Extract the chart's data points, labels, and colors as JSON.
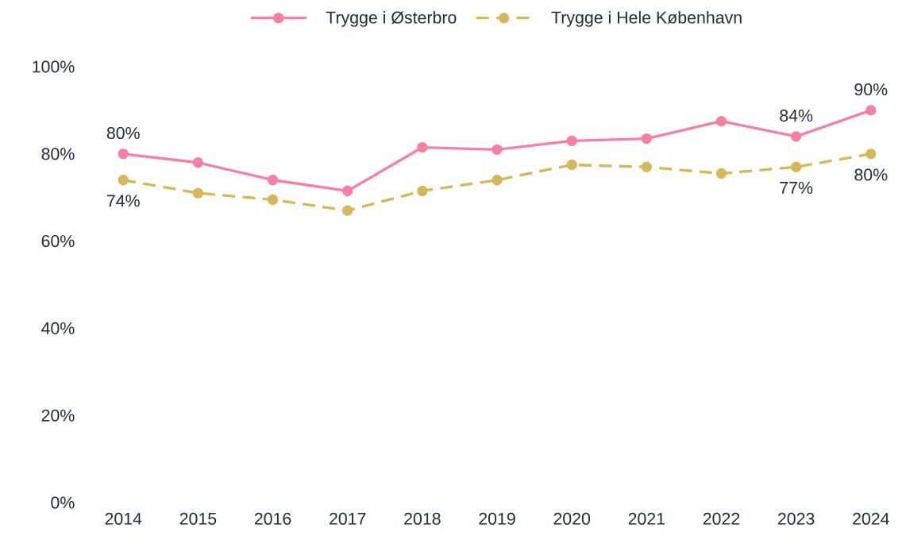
{
  "chart_data": {
    "type": "line",
    "categories": [
      "2014",
      "2015",
      "2016",
      "2017",
      "2018",
      "2019",
      "2020",
      "2021",
      "2022",
      "2023",
      "2024"
    ],
    "series": [
      {
        "name": "Trygge i Østerbro",
        "color": "#f77fa0",
        "line_style": "solid",
        "values": [
          80,
          78,
          74,
          71.5,
          81.5,
          81,
          83,
          83.5,
          87.5,
          84,
          90
        ],
        "value_labels": [
          "80%",
          null,
          null,
          null,
          null,
          null,
          null,
          null,
          null,
          "84%",
          "90%"
        ]
      },
      {
        "name": "Trygge i Hele København",
        "color": "#d4b85a",
        "line_style": "dashed",
        "values": [
          74,
          71,
          69.5,
          67,
          71.5,
          74,
          77.5,
          77,
          75.5,
          77,
          80
        ],
        "value_labels": [
          "74%",
          null,
          null,
          null,
          null,
          null,
          null,
          null,
          null,
          "77%",
          "80%"
        ]
      }
    ],
    "ylim": [
      0,
      100
    ],
    "yticks": [
      {
        "value": 0,
        "label": "0%"
      },
      {
        "value": 20,
        "label": "20%"
      },
      {
        "value": 40,
        "label": "40%"
      },
      {
        "value": 60,
        "label": "60%"
      },
      {
        "value": 80,
        "label": "80%"
      },
      {
        "value": 100,
        "label": "100%"
      }
    ],
    "marker": "circle",
    "legend": "top",
    "grid": false
  }
}
